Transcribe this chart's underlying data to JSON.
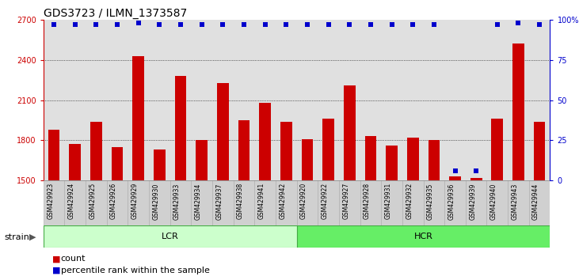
{
  "title": "GDS3723 / ILMN_1373587",
  "categories": [
    "GSM429923",
    "GSM429924",
    "GSM429925",
    "GSM429926",
    "GSM429929",
    "GSM429930",
    "GSM429933",
    "GSM429934",
    "GSM429937",
    "GSM429938",
    "GSM429941",
    "GSM429942",
    "GSM429920",
    "GSM429922",
    "GSM429927",
    "GSM429928",
    "GSM429931",
    "GSM429932",
    "GSM429935",
    "GSM429936",
    "GSM429939",
    "GSM429940",
    "GSM429943",
    "GSM429944"
  ],
  "bar_values": [
    1880,
    1775,
    1940,
    1750,
    2430,
    1730,
    2280,
    1800,
    2230,
    1950,
    2080,
    1940,
    1810,
    1960,
    2210,
    1830,
    1760,
    1820,
    1800,
    1530,
    1520,
    1960,
    2520,
    1940
  ],
  "percentile_values": [
    97,
    97,
    97,
    97,
    98,
    97,
    97,
    97,
    97,
    97,
    97,
    97,
    97,
    97,
    97,
    97,
    97,
    97,
    97,
    6,
    6,
    97,
    98,
    97
  ],
  "bar_color": "#cc0000",
  "dot_color": "#0000cc",
  "ylim_left": [
    1500,
    2700
  ],
  "ylim_right": [
    0,
    100
  ],
  "yticks_left": [
    1500,
    1800,
    2100,
    2400,
    2700
  ],
  "yticks_right": [
    0,
    25,
    50,
    75,
    100
  ],
  "grid_levels": [
    1800,
    2100,
    2400
  ],
  "lcr_count": 12,
  "group_color_lcr": "#ccffcc",
  "group_color_hcr": "#66ee66",
  "group_border_color": "#44aa44",
  "strain_label": "strain",
  "legend_count_label": "count",
  "legend_pct_label": "percentile rank within the sample",
  "bg_color": "#e0e0e0",
  "tick_label_bg": "#d0d0d0",
  "title_fontsize": 10,
  "tick_fontsize": 7,
  "bar_width": 0.55
}
